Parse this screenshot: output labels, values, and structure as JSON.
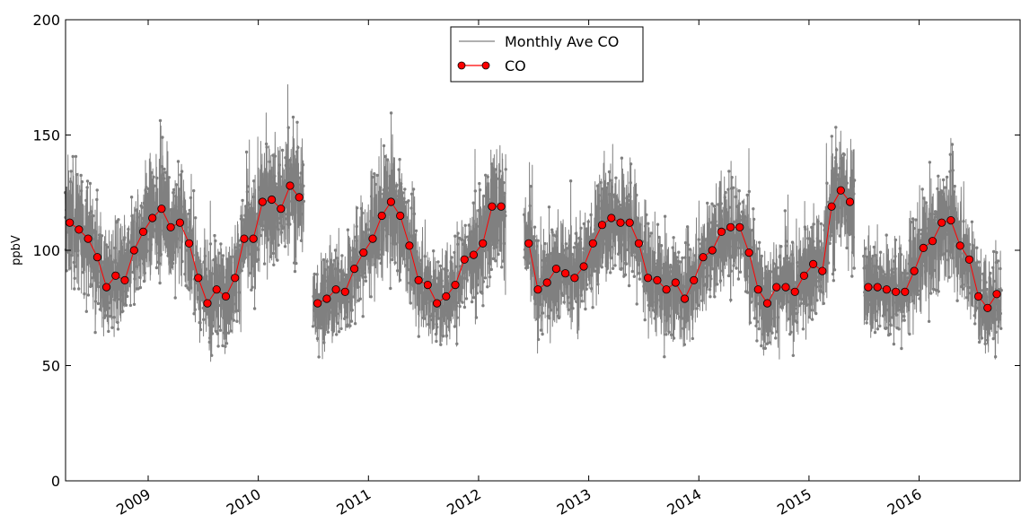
{
  "chart_data": {
    "type": "line",
    "title": "",
    "xlabel": "",
    "ylabel": "ppbV",
    "ylim": [
      0,
      200
    ],
    "xlim": [
      "2008-04-01",
      "2016-12-01"
    ],
    "grid": false,
    "legend_position": "top-center",
    "y_ticks": [
      "0",
      "50",
      "100",
      "150",
      "200"
    ],
    "x_ticks": [
      {
        "label": "2009",
        "date": "2009-01-01"
      },
      {
        "label": "2010",
        "date": "2010-01-01"
      },
      {
        "label": "2011",
        "date": "2011-01-01"
      },
      {
        "label": "2012",
        "date": "2012-01-01"
      },
      {
        "label": "2013",
        "date": "2013-01-01"
      },
      {
        "label": "2014",
        "date": "2014-01-01"
      },
      {
        "label": "2015",
        "date": "2015-01-01"
      },
      {
        "label": "2016",
        "date": "2016-01-01"
      }
    ],
    "series": [
      {
        "name": "Monthly Ave CO",
        "color": "#808080",
        "style": "noisy-line"
      },
      {
        "name": "CO",
        "color": "#ff0000",
        "marker": "circle",
        "segments": [
          {
            "x": [
              "2008-04",
              "2008-05",
              "2008-06",
              "2008-07",
              "2008-08",
              "2008-09",
              "2008-10",
              "2008-11",
              "2008-12",
              "2009-01",
              "2009-02",
              "2009-03",
              "2009-04",
              "2009-05",
              "2009-06",
              "2009-07",
              "2009-08",
              "2009-09",
              "2009-10",
              "2009-11",
              "2009-12",
              "2010-01",
              "2010-02",
              "2010-03",
              "2010-04",
              "2010-05",
              "2010-06"
            ],
            "y": [
              112,
              109,
              105,
              97,
              84,
              89,
              87,
              100,
              108,
              114,
              118,
              110,
              112,
              103,
              88,
              77,
              83,
              80,
              88,
              105,
              105,
              121,
              122,
              118,
              128,
              123,
              null
            ]
          },
          {
            "x": [
              "2010-07",
              "2010-08",
              "2010-09",
              "2010-10",
              "2010-11",
              "2010-12",
              "2011-01",
              "2011-02",
              "2011-03",
              "2011-04",
              "2011-05",
              "2011-06",
              "2011-07",
              "2011-08",
              "2011-09",
              "2011-10",
              "2011-11",
              "2011-12",
              "2012-01",
              "2012-02",
              "2012-03",
              "2012-04"
            ],
            "y": [
              77,
              79,
              83,
              82,
              92,
              99,
              105,
              115,
              121,
              115,
              102,
              87,
              85,
              77,
              80,
              85,
              96,
              98,
              103,
              119,
              119,
              null
            ]
          },
          {
            "x": [
              "2012-06",
              "2012-07",
              "2012-08",
              "2012-09",
              "2012-10",
              "2012-11",
              "2012-12",
              "2013-01",
              "2013-02",
              "2013-03",
              "2013-04",
              "2013-05",
              "2013-06",
              "2013-07",
              "2013-08",
              "2013-09",
              "2013-10",
              "2013-11",
              "2013-12",
              "2014-01",
              "2014-02",
              "2014-03",
              "2014-04",
              "2014-05",
              "2014-06",
              "2014-07",
              "2014-08",
              "2014-09",
              "2014-10",
              "2014-11",
              "2014-12",
              "2015-01",
              "2015-02",
              "2015-03",
              "2015-04",
              "2015-05"
            ],
            "y": [
              103,
              83,
              86,
              92,
              90,
              88,
              93,
              103,
              111,
              114,
              112,
              112,
              103,
              88,
              87,
              83,
              86,
              79,
              87,
              97,
              100,
              108,
              110,
              110,
              99,
              83,
              77,
              84,
              84,
              82,
              89,
              94,
              91,
              119,
              126,
              121
            ]
          },
          {
            "x": [
              "2015-07",
              "2015-08",
              "2015-09",
              "2015-10",
              "2015-11",
              "2015-12",
              "2016-01",
              "2016-02",
              "2016-03",
              "2016-04",
              "2016-05",
              "2016-06",
              "2016-07",
              "2016-08",
              "2016-09"
            ],
            "y": [
              84,
              84,
              83,
              82,
              82,
              91,
              101,
              104,
              112,
              113,
              102,
              96,
              80,
              75,
              81
            ]
          }
        ]
      }
    ]
  }
}
